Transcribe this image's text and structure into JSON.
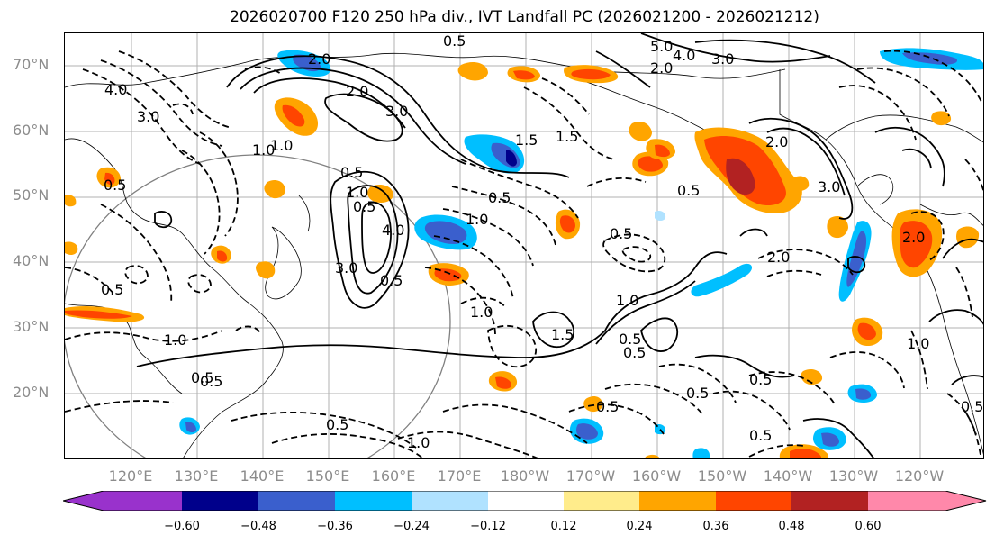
{
  "title": "2026020700 F120 250 hPa div., IVT Landfall PC (2026021200 - 2026021212)",
  "lat_labels": [
    "70°N",
    "60°N",
    "50°N",
    "40°N",
    "30°N",
    "20°N"
  ],
  "lon_labels": [
    "120°E",
    "130°E",
    "140°E",
    "150°E",
    "160°E",
    "170°E",
    "180°W",
    "170°W",
    "160°W",
    "150°W",
    "140°W",
    "130°W",
    "120°W"
  ],
  "colorbar": {
    "tick_labels": [
      "−0.60",
      "−0.48",
      "−0.36",
      "−0.24",
      "−0.12",
      "0.12",
      "0.24",
      "0.36",
      "0.48",
      "0.60"
    ],
    "colors": [
      "#9932cc",
      "#00008b",
      "#3a5fcd",
      "#00bfff",
      "#b0e2ff",
      "#ffffff",
      "#ffec8b",
      "#ffa500",
      "#ff4500",
      "#b22222",
      "#ff88aa"
    ]
  },
  "contour_labels": {
    "c1": "2.0",
    "c2": "0.5",
    "c3": "5.0",
    "c4": "4.0",
    "c5": "3.0",
    "c6": "2.0",
    "c7": "1.0",
    "c8": "0.5",
    "c9": "4.0",
    "c10": "3.0",
    "c11": "2.0",
    "c12": "3.0",
    "c13": "1.0",
    "c14": "0.5",
    "c15": "1.5",
    "c16": "1.0",
    "c17": "0.5",
    "c18": "4.0",
    "c19": "3.0",
    "c20": "0.5",
    "c21": "1.0",
    "c22": "0.5",
    "c23": "1.0",
    "c24": "0.5",
    "c25": "2.0",
    "c26": "3.0",
    "c27": "2.0",
    "c28": "0.5",
    "c29": "1.0",
    "c30": "1.5",
    "c31": "0.5",
    "c32": "0.5",
    "c33": "0.5",
    "c34": "1.0",
    "c35": "0.5",
    "c36": "0.5",
    "c37": "0.5",
    "c38": "1.0",
    "c39": "2.0",
    "c40": "1.0",
    "c41": "0.5",
    "c42": "0.5",
    "c43": "0.5",
    "c44": "1.5",
    "c45": "0.5",
    "c46": "0.5"
  }
}
